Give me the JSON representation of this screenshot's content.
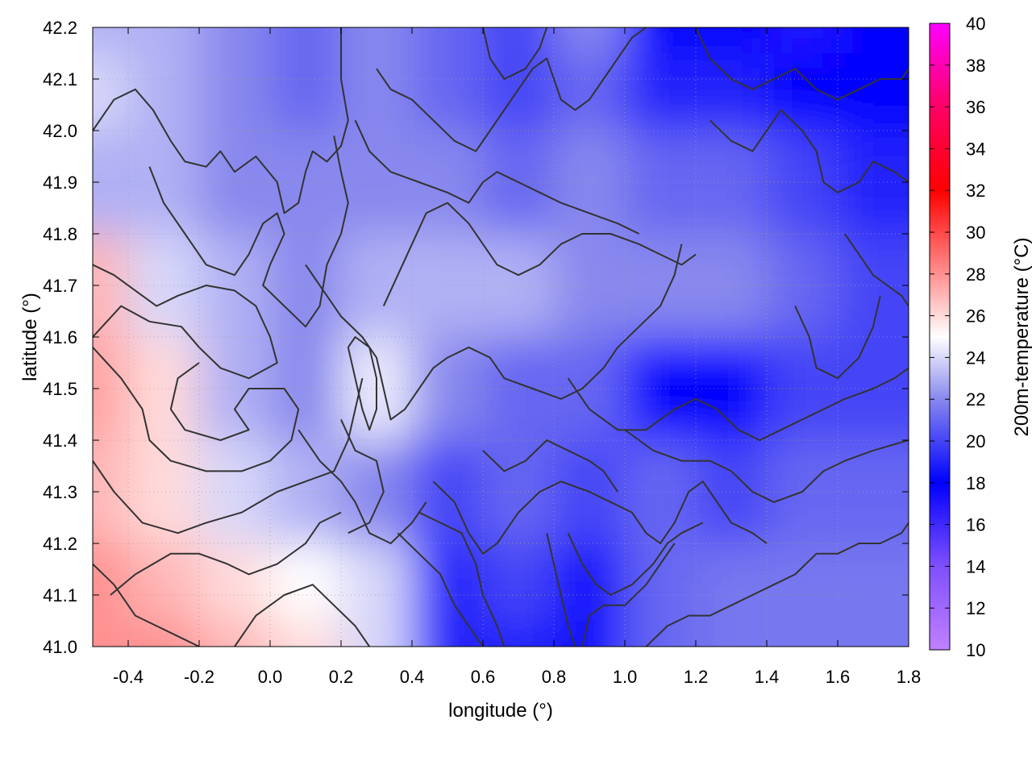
{
  "chart_data": {
    "type": "heatmap",
    "title": "",
    "xlabel": "longitude (°)",
    "ylabel": "latitude (°)",
    "colorbar_label": "200m-temperature (°C)",
    "xlim": [
      -0.5,
      1.8
    ],
    "ylim": [
      41.0,
      42.2
    ],
    "x_ticks": [
      -0.4,
      -0.2,
      0.0,
      0.2,
      0.4,
      0.6,
      0.8,
      1.0,
      1.2,
      1.4,
      1.6,
      1.8
    ],
    "x_tick_labels": [
      "-0.4",
      "-0.2",
      "0.0",
      "0.2",
      "0.4",
      "0.6",
      "0.8",
      "1.0",
      "1.2",
      "1.4",
      "1.6",
      "1.8"
    ],
    "y_ticks": [
      41.0,
      41.1,
      41.2,
      41.3,
      41.4,
      41.5,
      41.6,
      41.7,
      41.8,
      41.9,
      42.0,
      42.1,
      42.2
    ],
    "y_tick_labels": [
      "41.0",
      "41.1",
      "41.2",
      "41.3",
      "41.4",
      "41.5",
      "41.6",
      "41.7",
      "41.8",
      "41.9",
      "42.0",
      "42.1",
      "42.2"
    ],
    "colorbar_range": [
      10,
      40
    ],
    "colorbar_ticks": [
      10,
      12,
      14,
      16,
      18,
      20,
      22,
      24,
      26,
      28,
      30,
      32,
      34,
      36,
      38,
      40
    ],
    "colorbar_tick_labels": [
      "10",
      "12",
      "14",
      "16",
      "18",
      "20",
      "22",
      "24",
      "26",
      "28",
      "30",
      "32",
      "34",
      "36",
      "38",
      "40"
    ],
    "colormap": [
      {
        "value": 10,
        "color": "#c080ff"
      },
      {
        "value": 14,
        "color": "#8050ff"
      },
      {
        "value": 18,
        "color": "#0000ff"
      },
      {
        "value": 22,
        "color": "#8888ee"
      },
      {
        "value": 25,
        "color": "#ffffff"
      },
      {
        "value": 28,
        "color": "#ff9090"
      },
      {
        "value": 32,
        "color": "#ff0000"
      },
      {
        "value": 36,
        "color": "#ff0066"
      },
      {
        "value": 40,
        "color": "#ff00ff"
      }
    ],
    "grid": true,
    "contour_color": "#333333",
    "field_samples": {
      "x": [
        -0.5,
        -0.3,
        -0.1,
        0.1,
        0.3,
        0.5,
        0.7,
        0.9,
        1.1,
        1.3,
        1.5,
        1.7
      ],
      "y": [
        42.2,
        42.1,
        41.9,
        41.7,
        41.5,
        41.3,
        41.1,
        41.0
      ],
      "values": [
        [
          23.0,
          23.0,
          22.0,
          21.0,
          22.0,
          21.0,
          20.0,
          22.0,
          18.0,
          18.0,
          17.0,
          18.0
        ],
        [
          24.0,
          23.0,
          22.0,
          21.0,
          22.0,
          21.0,
          20.0,
          21.0,
          19.0,
          19.0,
          18.0,
          18.0
        ],
        [
          23.0,
          23.0,
          22.0,
          22.0,
          22.0,
          22.0,
          21.0,
          22.0,
          21.0,
          21.0,
          20.0,
          19.0
        ],
        [
          27.0,
          24.0,
          23.0,
          22.0,
          23.0,
          23.0,
          23.0,
          22.0,
          22.0,
          22.0,
          21.0,
          20.0
        ],
        [
          27.5,
          26.0,
          23.0,
          22.0,
          24.5,
          22.0,
          21.0,
          21.0,
          18.0,
          18.0,
          20.0,
          20.0
        ],
        [
          27.0,
          26.0,
          24.0,
          23.0,
          22.0,
          20.0,
          21.0,
          20.0,
          21.0,
          20.0,
          21.0,
          21.0
        ],
        [
          28.0,
          27.0,
          26.0,
          25.0,
          24.0,
          19.0,
          20.0,
          18.5,
          21.0,
          21.5,
          21.5,
          21.5
        ],
        [
          28.0,
          28.0,
          27.0,
          26.0,
          24.0,
          19.0,
          19.0,
          18.5,
          21.0,
          21.5,
          21.5,
          21.5
        ]
      ]
    }
  }
}
